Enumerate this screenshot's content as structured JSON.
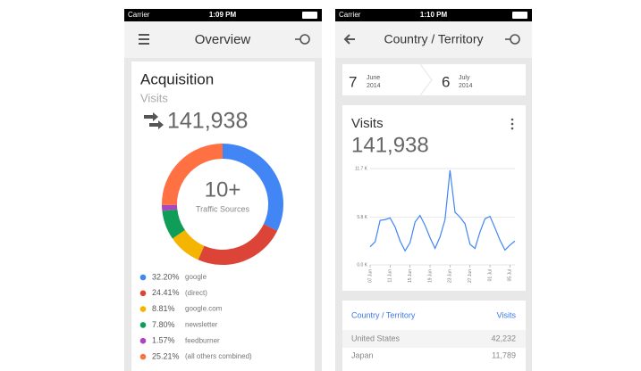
{
  "left": {
    "status": {
      "carrier": "Carrier",
      "time": "1:09 PM"
    },
    "header": {
      "title": "Overview"
    },
    "card": {
      "title": "Acquisition",
      "metric": "Visits",
      "total": "141,938"
    },
    "donut": {
      "type": "pie",
      "center_value": "10+",
      "center_label": "Traffic Sources",
      "segments": [
        {
          "name": "google",
          "color": "#4285f4",
          "value": 32.2,
          "value_label": "32.20%"
        },
        {
          "name": "(direct)",
          "color": "#db4437",
          "value": 24.41,
          "value_label": "24.41%"
        },
        {
          "name": "google.com",
          "color": "#f4b400",
          "value": 8.81,
          "value_label": "8.81%"
        },
        {
          "name": "newsletter",
          "color": "#0f9d58",
          "value": 7.8,
          "value_label": "7.80%"
        },
        {
          "name": "feedburner",
          "color": "#ab47bc",
          "value": 1.57,
          "value_label": "1.57%"
        },
        {
          "name": "(all others combined)",
          "color": "#ff7043",
          "value": 25.21,
          "value_label": "25.21%"
        }
      ]
    }
  },
  "right": {
    "status": {
      "carrier": "Carrier",
      "time": "1:10 PM"
    },
    "header": {
      "title": "Country / Territory"
    },
    "date_range": {
      "start_day": "7",
      "start_month": "June",
      "start_year": "2014",
      "end_day": "6",
      "end_month": "July",
      "end_year": "2014"
    },
    "card": {
      "title": "Visits",
      "total": "141,938"
    },
    "line_chart": {
      "type": "line",
      "color": "#4285f4",
      "grid": true,
      "categories": [
        "07 Jun",
        null,
        null,
        null,
        "11 Jun",
        null,
        null,
        null,
        "15 Jun",
        null,
        null,
        null,
        "19 Jun",
        null,
        null,
        null,
        "23 Jun",
        null,
        null,
        null,
        "27 Jun",
        null,
        null,
        null,
        "01 Jul",
        null,
        null,
        null,
        "05 Jul",
        null
      ],
      "values": [
        2.2,
        2.8,
        5.4,
        5.5,
        5.7,
        4.6,
        2.9,
        1.7,
        2.7,
        5.2,
        6.0,
        4.8,
        3.3,
        2.0,
        3.4,
        5.5,
        11.5,
        6.4,
        5.8,
        5.0,
        2.5,
        2.0,
        4.0,
        5.6,
        5.9,
        4.5,
        3.0,
        1.8,
        2.4,
        2.9
      ],
      "ylim": [
        0,
        11.7
      ],
      "yticks": [
        {
          "value": 0,
          "label": "0.0 K"
        },
        {
          "value": 5.8,
          "label": "5.8 K"
        },
        {
          "value": 11.7,
          "label": "11.7 K"
        }
      ]
    },
    "table": {
      "header": [
        "Country / Territory",
        "Visits"
      ],
      "rows": [
        [
          "United States",
          "42,232"
        ],
        [
          "Japan",
          "11,789"
        ]
      ]
    }
  }
}
